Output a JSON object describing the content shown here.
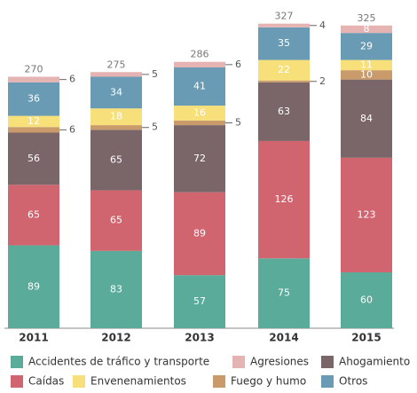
{
  "chart_data": {
    "type": "stacked-bar",
    "categories": [
      "2011",
      "2012",
      "2013",
      "2014",
      "2015"
    ],
    "totals": [
      270,
      275,
      286,
      327,
      325
    ],
    "series": [
      {
        "name": "Accidentes de tráfico y transporte",
        "color": "#5aab99",
        "values": [
          89,
          83,
          57,
          75,
          60
        ]
      },
      {
        "name": "Caídas",
        "color": "#d0646f",
        "values": [
          65,
          65,
          89,
          126,
          123
        ]
      },
      {
        "name": "Ahogamiento",
        "color": "#7a6668",
        "values": [
          56,
          65,
          72,
          63,
          84
        ]
      },
      {
        "name": "Fuego y humo",
        "color": "#c99a6a",
        "values": [
          6,
          5,
          5,
          2,
          10
        ]
      },
      {
        "name": "Envenenamientos",
        "color": "#f7e07a",
        "values": [
          12,
          18,
          16,
          22,
          11
        ]
      },
      {
        "name": "Otros",
        "color": "#6a9bb5",
        "values": [
          36,
          34,
          41,
          35,
          29
        ]
      },
      {
        "name": "Agresiones",
        "color": "#e6b3b3",
        "values": [
          6,
          5,
          6,
          4,
          8
        ]
      }
    ]
  }
}
